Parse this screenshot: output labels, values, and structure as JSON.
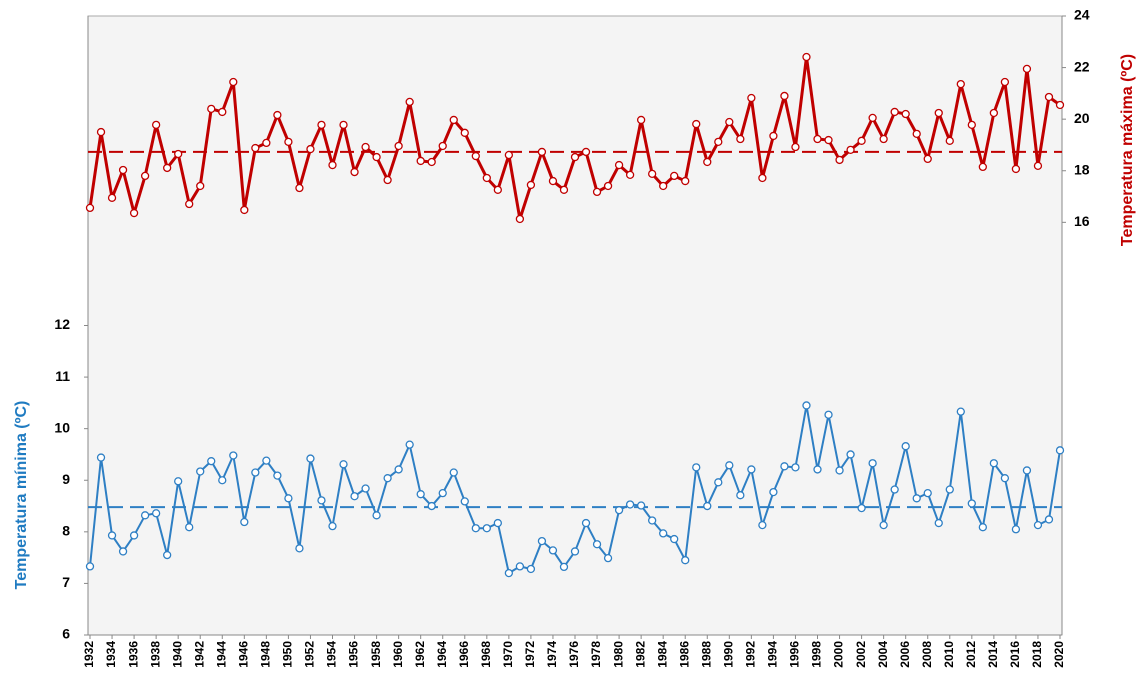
{
  "chart_data": {
    "type": "line",
    "x": [
      1932,
      1933,
      1934,
      1935,
      1936,
      1937,
      1938,
      1939,
      1940,
      1941,
      1942,
      1943,
      1944,
      1945,
      1946,
      1947,
      1948,
      1949,
      1950,
      1951,
      1952,
      1953,
      1954,
      1955,
      1956,
      1957,
      1958,
      1959,
      1960,
      1961,
      1962,
      1963,
      1964,
      1965,
      1966,
      1967,
      1968,
      1969,
      1970,
      1971,
      1972,
      1973,
      1974,
      1975,
      1976,
      1977,
      1978,
      1979,
      1980,
      1981,
      1982,
      1983,
      1984,
      1985,
      1986,
      1987,
      1988,
      1989,
      1990,
      1991,
      1992,
      1993,
      1994,
      1995,
      1996,
      1997,
      1998,
      1999,
      2000,
      2001,
      2002,
      2003,
      2004,
      2005,
      2006,
      2007,
      2008,
      2009,
      2010,
      2011,
      2012,
      2013,
      2014,
      2015,
      2016,
      2017,
      2018,
      2019,
      2020
    ],
    "xlim": [
      1932,
      2020
    ],
    "xticks": [
      1932,
      1934,
      1936,
      1938,
      1940,
      1942,
      1944,
      1946,
      1948,
      1950,
      1952,
      1954,
      1956,
      1958,
      1960,
      1962,
      1964,
      1966,
      1968,
      1970,
      1972,
      1974,
      1976,
      1978,
      1980,
      1982,
      1984,
      1986,
      1988,
      1990,
      1992,
      1994,
      1996,
      1998,
      2000,
      2002,
      2004,
      2006,
      2008,
      2010,
      2012,
      2014,
      2016,
      2018,
      2020
    ],
    "y_label": "Temperatura mínima (ºC)",
    "y2_label": "Temperatura máxima (ºC)",
    "ylim": [
      6,
      18
    ],
    "yticks": [
      6,
      7,
      8,
      9,
      10,
      11,
      12
    ],
    "y2lim": [
      0,
      24
    ],
    "y2ticks": [
      16,
      18,
      20,
      22,
      24
    ],
    "series": [
      {
        "color": "#2e7fc4",
        "axis": "y",
        "mean": 8.48,
        "values": [
          7.33,
          9.44,
          7.93,
          7.62,
          7.93,
          8.32,
          8.36,
          7.55,
          8.98,
          8.09,
          9.17,
          9.37,
          9.0,
          9.48,
          8.19,
          9.15,
          9.38,
          9.09,
          8.65,
          7.68,
          9.42,
          8.61,
          8.11,
          9.31,
          8.69,
          8.84,
          8.32,
          9.04,
          9.21,
          9.69,
          8.73,
          8.5,
          8.75,
          9.15,
          8.59,
          8.07,
          8.07,
          8.17,
          7.2,
          7.33,
          7.28,
          7.82,
          7.64,
          7.32,
          7.62,
          8.17,
          7.76,
          7.49,
          8.42,
          8.53,
          8.51,
          8.22,
          7.97,
          7.86,
          7.45,
          9.25,
          8.5,
          8.96,
          9.29,
          8.71,
          9.21,
          8.13,
          8.77,
          9.27,
          9.25,
          10.45,
          9.21,
          10.27,
          9.19,
          9.5,
          8.46,
          9.33,
          8.13,
          8.82,
          9.66,
          8.65,
          8.75,
          8.17,
          8.82,
          10.33,
          8.55,
          8.09,
          9.33,
          9.04,
          8.05,
          9.19,
          8.13,
          8.24,
          9.58
        ]
      },
      {
        "color": "#c00000",
        "axis": "y2",
        "mean": 18.73,
        "values": [
          16.56,
          19.5,
          16.95,
          18.03,
          16.36,
          17.8,
          19.78,
          18.11,
          18.65,
          16.71,
          17.41,
          20.4,
          20.28,
          21.44,
          16.48,
          18.88,
          19.08,
          20.16,
          19.12,
          17.33,
          18.84,
          19.78,
          18.22,
          19.78,
          17.95,
          18.92,
          18.53,
          17.64,
          18.96,
          20.67,
          18.38,
          18.34,
          18.96,
          19.97,
          19.47,
          18.57,
          17.72,
          17.26,
          18.61,
          16.13,
          17.45,
          18.73,
          17.6,
          17.26,
          18.53,
          18.73,
          17.18,
          17.41,
          18.22,
          17.84,
          19.97,
          17.88,
          17.41,
          17.8,
          17.6,
          19.81,
          18.34,
          19.12,
          19.89,
          19.23,
          20.82,
          17.72,
          19.35,
          20.9,
          18.92,
          22.41,
          19.23,
          19.19,
          18.42,
          18.81,
          19.16,
          20.05,
          19.23,
          20.28,
          20.2,
          19.43,
          18.46,
          20.24,
          19.16,
          21.36,
          19.78,
          18.15,
          20.24,
          21.44,
          18.07,
          21.95,
          18.19,
          20.86,
          20.55
        ]
      }
    ]
  }
}
